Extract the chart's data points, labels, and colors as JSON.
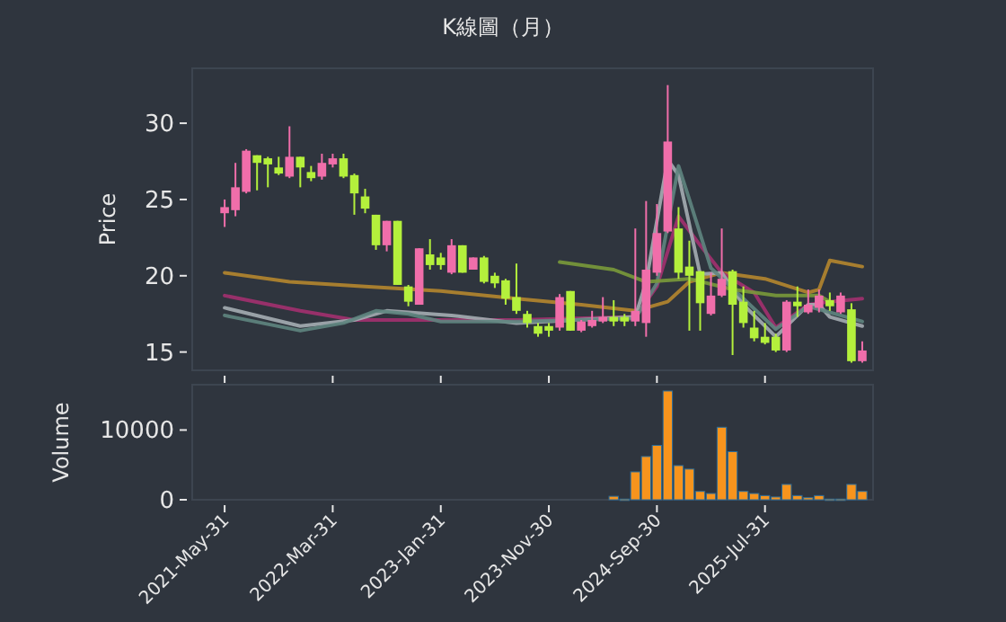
{
  "chart_data": [
    {
      "type": "candlestick",
      "title": "K線圖（月）",
      "ylabel": "Price",
      "tick_labels": "y",
      "x": [
        "2021-05",
        "2021-06",
        "2021-07",
        "2021-08",
        "2021-09",
        "2021-10",
        "2021-11",
        "2021-12",
        "2022-01",
        "2022-02",
        "2022-03",
        "2022-04",
        "2022-05",
        "2022-06",
        "2022-07",
        "2022-08",
        "2022-09",
        "2022-10",
        "2022-11",
        "2022-12",
        "2023-01",
        "2023-02",
        "2023-03",
        "2023-04",
        "2023-05",
        "2023-06",
        "2023-07",
        "2023-08",
        "2023-09",
        "2023-10",
        "2023-11",
        "2023-12",
        "2024-01",
        "2024-02",
        "2024-03",
        "2024-04",
        "2024-05",
        "2024-06",
        "2024-07",
        "2024-08",
        "2024-09",
        "2024-10",
        "2024-11",
        "2024-12",
        "2025-01",
        "2025-02",
        "2025-03",
        "2025-04",
        "2025-05",
        "2025-06",
        "2025-07",
        "2025-08",
        "2025-09",
        "2025-10",
        "2025-11",
        "2025-12",
        "2026-01",
        "2026-02",
        "2026-03",
        "2026-04"
      ],
      "ohlc": [
        [
          24.1,
          25.0,
          23.2,
          24.5
        ],
        [
          24.3,
          27.4,
          23.9,
          25.8
        ],
        [
          25.5,
          28.3,
          25.4,
          28.2
        ],
        [
          27.9,
          27.9,
          25.6,
          27.4
        ],
        [
          27.7,
          27.8,
          25.8,
          27.3
        ],
        [
          27.1,
          27.8,
          26.6,
          26.7
        ],
        [
          26.5,
          29.8,
          26.4,
          27.8
        ],
        [
          27.8,
          27.8,
          25.8,
          27.1
        ],
        [
          26.8,
          27.2,
          26.2,
          26.4
        ],
        [
          26.5,
          28.0,
          26.3,
          27.4
        ],
        [
          27.3,
          28.0,
          27.1,
          27.7
        ],
        [
          27.7,
          28.0,
          26.4,
          26.5
        ],
        [
          26.6,
          26.7,
          24.0,
          25.4
        ],
        [
          25.2,
          25.7,
          24.1,
          24.4
        ],
        [
          24.0,
          24.0,
          21.7,
          22.0
        ],
        [
          22.0,
          23.6,
          21.6,
          23.6
        ],
        [
          23.6,
          23.6,
          19.4,
          19.4
        ],
        [
          19.3,
          19.4,
          18.0,
          18.3
        ],
        [
          18.1,
          21.8,
          18.1,
          21.8
        ],
        [
          21.4,
          22.4,
          20.4,
          20.7
        ],
        [
          21.2,
          21.5,
          20.4,
          20.7
        ],
        [
          20.2,
          22.4,
          20.1,
          22.0
        ],
        [
          22.0,
          22.0,
          20.2,
          20.2
        ],
        [
          20.4,
          21.2,
          20.4,
          21.2
        ],
        [
          21.2,
          21.3,
          19.5,
          19.6
        ],
        [
          20.0,
          20.2,
          19.2,
          19.5
        ],
        [
          19.7,
          19.8,
          18.1,
          18.5
        ],
        [
          18.6,
          20.8,
          17.5,
          17.7
        ],
        [
          17.5,
          17.7,
          16.6,
          16.9
        ],
        [
          16.7,
          16.9,
          16.0,
          16.2
        ],
        [
          16.7,
          16.9,
          16.0,
          16.4
        ],
        [
          16.6,
          18.8,
          16.4,
          18.6
        ],
        [
          19.0,
          19.0,
          16.4,
          16.4
        ],
        [
          16.4,
          17.1,
          16.3,
          17.0
        ],
        [
          16.7,
          17.7,
          16.6,
          17.1
        ],
        [
          17.0,
          18.6,
          16.9,
          17.3
        ],
        [
          17.3,
          18.4,
          16.7,
          17.0
        ],
        [
          17.3,
          17.5,
          16.7,
          17.0
        ],
        [
          17.0,
          23.1,
          16.7,
          17.7
        ],
        [
          16.9,
          24.9,
          16.0,
          20.4
        ],
        [
          20.2,
          24.7,
          20.0,
          22.8
        ],
        [
          22.9,
          32.5,
          22.8,
          28.8
        ],
        [
          23.1,
          24.5,
          19.8,
          20.2
        ],
        [
          20.6,
          22.3,
          16.4,
          20.0
        ],
        [
          20.3,
          20.3,
          16.4,
          18.2
        ],
        [
          17.5,
          20.2,
          17.4,
          18.7
        ],
        [
          18.7,
          23.1,
          18.6,
          19.8
        ],
        [
          20.3,
          20.4,
          14.8,
          18.1
        ],
        [
          18.3,
          19.3,
          16.6,
          16.9
        ],
        [
          16.6,
          17.7,
          15.7,
          15.9
        ],
        [
          16.0,
          16.9,
          15.5,
          15.6
        ],
        [
          16.0,
          16.2,
          15.0,
          15.1
        ],
        [
          15.1,
          18.4,
          15.0,
          18.3
        ],
        [
          18.3,
          19.3,
          17.3,
          18.0
        ],
        [
          17.6,
          19.1,
          17.5,
          18.1
        ],
        [
          17.9,
          19.1,
          17.6,
          18.7
        ],
        [
          18.4,
          18.9,
          17.7,
          18.0
        ],
        [
          17.6,
          18.9,
          17.5,
          18.7
        ],
        [
          17.8,
          18.2,
          14.3,
          14.4
        ],
        [
          14.4,
          15.7,
          14.3,
          15.1
        ]
      ],
      "colors": [
        "#f06eaa",
        "#f06eaa",
        "#f06eaa",
        "#b4f03c",
        "#b4f03c",
        "#b4f03c",
        "#f06eaa",
        "#b4f03c",
        "#b4f03c",
        "#f06eaa",
        "#f06eaa",
        "#b4f03c",
        "#b4f03c",
        "#b4f03c",
        "#b4f03c",
        "#f06eaa",
        "#b4f03c",
        "#b4f03c",
        "#f06eaa",
        "#b4f03c",
        "#b4f03c",
        "#f06eaa",
        "#b4f03c",
        "#f06eaa",
        "#b4f03c",
        "#b4f03c",
        "#b4f03c",
        "#b4f03c",
        "#b4f03c",
        "#b4f03c",
        "#b4f03c",
        "#f06eaa",
        "#b4f03c",
        "#f06eaa",
        "#f06eaa",
        "#f06eaa",
        "#b4f03c",
        "#b4f03c",
        "#f06eaa",
        "#f06eaa",
        "#f06eaa",
        "#f06eaa",
        "#b4f03c",
        "#b4f03c",
        "#b4f03c",
        "#f06eaa",
        "#f06eaa",
        "#b4f03c",
        "#b4f03c",
        "#b4f03c",
        "#b4f03c",
        "#b4f03c",
        "#f06eaa",
        "#b4f03c",
        "#f06eaa",
        "#f06eaa",
        "#b4f03c",
        "#f06eaa",
        "#b4f03c",
        "#f06eaa"
      ],
      "series": [
        {
          "type": "line",
          "color": "#b5862e",
          "x": [
            "2021-05",
            "2021-11",
            "2022-06",
            "2023-01",
            "2023-08",
            "2024-02",
            "2024-07",
            "2024-10",
            "2024-12",
            "2025-03",
            "2025-07",
            "2025-11",
            "2025-12",
            "2026-01",
            "2026-04"
          ],
          "values": [
            20.2,
            19.6,
            19.3,
            19.0,
            18.5,
            18.1,
            17.7,
            18.3,
            19.6,
            20.2,
            19.8,
            18.9,
            19.1,
            21.0,
            20.6
          ]
        },
        {
          "type": "line",
          "color": "#a3306f",
          "x": [
            "2021-05",
            "2021-12",
            "2022-05",
            "2023-08",
            "2024-07",
            "2024-09",
            "2024-11",
            "2025-01",
            "2025-03",
            "2025-06",
            "2025-08",
            "2025-11",
            "2026-01",
            "2026-04"
          ],
          "values": [
            18.7,
            17.7,
            17.1,
            17.1,
            17.3,
            19.3,
            23.9,
            22.0,
            20.2,
            18.9,
            16.6,
            18.1,
            18.3,
            18.5
          ]
        },
        {
          "type": "line",
          "color": "#a5adb3",
          "x": [
            "2021-05",
            "2021-12",
            "2022-05",
            "2022-08",
            "2023-02",
            "2023-08",
            "2024-07",
            "2024-08",
            "2024-10",
            "2024-11",
            "2025-01",
            "2025-03",
            "2025-05",
            "2025-08",
            "2025-11",
            "2025-12",
            "2026-01",
            "2026-04"
          ],
          "values": [
            17.9,
            16.7,
            17.1,
            17.7,
            17.4,
            16.9,
            17.3,
            19.6,
            27.6,
            26.6,
            20.1,
            20.2,
            18.1,
            16.0,
            18.1,
            18.1,
            17.3,
            16.7
          ]
        },
        {
          "type": "line",
          "color": "#5f8580",
          "x": [
            "2021-05",
            "2021-12",
            "2022-04",
            "2022-07",
            "2022-10",
            "2023-01",
            "2023-08",
            "2024-07",
            "2024-09",
            "2024-11",
            "2024-12",
            "2025-02",
            "2025-05",
            "2025-08",
            "2025-11",
            "2026-04"
          ],
          "values": [
            17.4,
            16.4,
            16.9,
            17.7,
            17.5,
            17.0,
            17.0,
            17.2,
            19.5,
            27.2,
            25.0,
            20.5,
            18.5,
            16.5,
            18.0,
            17.0
          ]
        },
        {
          "type": "line",
          "color": "#7a9a3a",
          "x": [
            "2023-12",
            "2024-05",
            "2024-08",
            "2024-12",
            "2025-04",
            "2025-08",
            "2025-12",
            "2026-01"
          ],
          "values": [
            20.9,
            20.4,
            19.6,
            19.8,
            19.1,
            18.7,
            18.7,
            18.3
          ]
        }
      ],
      "xlim": [
        "2021-02",
        "2026-05"
      ],
      "ylim": [
        13.8,
        33.6
      ],
      "yticks": [
        15,
        20,
        25,
        30
      ],
      "xticks": [
        "2021-05",
        "2022-03",
        "2023-01",
        "2023-11",
        "2024-09",
        "2025-07"
      ]
    },
    {
      "type": "bar",
      "ylabel": "Volume",
      "color": "#f7941d",
      "x": [
        "2024-05",
        "2024-06",
        "2024-07",
        "2024-08",
        "2024-09",
        "2024-10",
        "2024-11",
        "2024-12",
        "2025-01",
        "2025-02",
        "2025-03",
        "2025-04",
        "2025-05",
        "2025-06",
        "2025-07",
        "2025-08",
        "2025-09",
        "2025-10",
        "2025-11",
        "2025-12",
        "2026-01",
        "2026-02",
        "2026-03",
        "2026-04"
      ],
      "values": [
        500,
        100,
        4000,
        6200,
        7800,
        15600,
        4900,
        4400,
        1200,
        900,
        10400,
        6900,
        1200,
        900,
        600,
        400,
        2200,
        600,
        300,
        600,
        100,
        100,
        2200,
        1200
      ],
      "xlim": [
        "2021-02",
        "2026-05"
      ],
      "ylim": [
        0,
        16500
      ],
      "yticks": [
        0,
        10000
      ],
      "xticks": [
        {
          "value": "2021-05",
          "label": "2021-May-31"
        },
        {
          "value": "2022-03",
          "label": "2022-Mar-31"
        },
        {
          "value": "2023-01",
          "label": "2023-Jan-31"
        },
        {
          "value": "2023-11",
          "label": "2023-Nov-30"
        },
        {
          "value": "2024-09",
          "label": "2024-Sep-30"
        },
        {
          "value": "2025-07",
          "label": "2025-Jul-31"
        }
      ]
    }
  ]
}
